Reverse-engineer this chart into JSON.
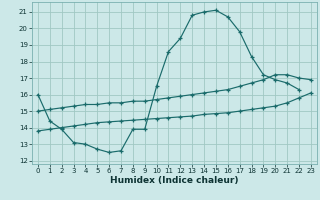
{
  "xlabel": "Humidex (Indice chaleur)",
  "bg_color": "#cce8e8",
  "line_color": "#1a6b6b",
  "grid_color": "#a0c8c4",
  "xlim": [
    -0.5,
    23.5
  ],
  "ylim": [
    11.8,
    21.6
  ],
  "xticks": [
    0,
    1,
    2,
    3,
    4,
    5,
    6,
    7,
    8,
    9,
    10,
    11,
    12,
    13,
    14,
    15,
    16,
    17,
    18,
    19,
    20,
    21,
    22,
    23
  ],
  "yticks": [
    12,
    13,
    14,
    15,
    16,
    17,
    18,
    19,
    20,
    21
  ],
  "s1_x": [
    0,
    1,
    2,
    3,
    4,
    5,
    6,
    7,
    8,
    9,
    10,
    11,
    12,
    13,
    14,
    15,
    16,
    17,
    18,
    19,
    20,
    21,
    22
  ],
  "s1_y": [
    16.0,
    14.4,
    13.9,
    13.1,
    13.0,
    12.7,
    12.5,
    12.6,
    13.9,
    13.9,
    16.5,
    18.6,
    19.4,
    20.8,
    21.0,
    21.1,
    20.7,
    19.8,
    18.3,
    17.2,
    16.9,
    16.7,
    16.3
  ],
  "s2_x": [
    0,
    1,
    2,
    3,
    4,
    5,
    6,
    7,
    8,
    9,
    10,
    11,
    12,
    13,
    14,
    15,
    16,
    17,
    18,
    19,
    20,
    21,
    22,
    23
  ],
  "s2_y": [
    15.0,
    15.1,
    15.2,
    15.3,
    15.4,
    15.4,
    15.5,
    15.5,
    15.6,
    15.6,
    15.7,
    15.8,
    15.9,
    16.0,
    16.1,
    16.2,
    16.3,
    16.5,
    16.7,
    16.9,
    17.2,
    17.2,
    17.0,
    16.9
  ],
  "s3_x": [
    0,
    1,
    2,
    3,
    4,
    5,
    6,
    7,
    8,
    9,
    10,
    11,
    12,
    13,
    14,
    15,
    16,
    17,
    18,
    19,
    20,
    21,
    22,
    23
  ],
  "s3_y": [
    13.8,
    13.9,
    14.0,
    14.1,
    14.2,
    14.3,
    14.35,
    14.4,
    14.45,
    14.5,
    14.55,
    14.6,
    14.65,
    14.7,
    14.8,
    14.85,
    14.9,
    15.0,
    15.1,
    15.2,
    15.3,
    15.5,
    15.8,
    16.1
  ]
}
